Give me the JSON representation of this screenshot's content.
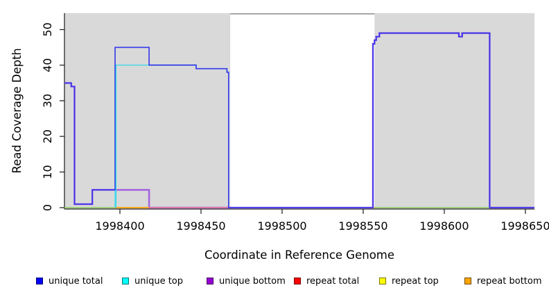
{
  "figure": {
    "background": "#ffffff",
    "shade_color": "#d9d9d9",
    "axis_color": "#1a1a1a",
    "gap_top_border_color": "#8a8a8a"
  },
  "chart_data": {
    "type": "line",
    "step": true,
    "title": "",
    "xlabel": "Coordinate in Reference Genome",
    "ylabel": "Read Coverage Depth",
    "xlim": [
      1998365.8,
      1998655.6
    ],
    "ylim": [
      0,
      54.6
    ],
    "x_ticks": [
      {
        "value": 1998400,
        "label": "1998400"
      },
      {
        "value": 1998450,
        "label": "1998450"
      },
      {
        "value": 1998500,
        "label": "1998500"
      },
      {
        "value": 1998550,
        "label": "1998550"
      },
      {
        "value": 1998600,
        "label": "1998600"
      },
      {
        "value": 1998650,
        "label": "1998650"
      }
    ],
    "y_ticks": [
      {
        "value": 0,
        "label": "0"
      },
      {
        "value": 10,
        "label": "10"
      },
      {
        "value": 20,
        "label": "20"
      },
      {
        "value": 30,
        "label": "30"
      },
      {
        "value": 40,
        "label": "40"
      },
      {
        "value": 50,
        "label": "50"
      }
    ],
    "grid": false,
    "legend_position": "bottom",
    "shaded_regions": [
      {
        "x0": 1998365.8,
        "x1": 1998468
      },
      {
        "x0": 1998557,
        "x1": 1998655.6
      }
    ],
    "series": [
      {
        "name": "repeat total",
        "legend_color": "#ff0000",
        "stroke": "#ee7896",
        "width": 1.4,
        "points": [
          [
            1998365.8,
            0
          ],
          [
            1998655.6,
            0
          ]
        ]
      },
      {
        "name": "repeat top",
        "legend_color": "#ffff00",
        "stroke": "#ffff00",
        "width": 1.2,
        "points": [
          [
            1998365.8,
            0
          ],
          [
            1998655.6,
            0
          ]
        ]
      },
      {
        "name": "repeat bottom",
        "legend_color": "#ffa500",
        "stroke": "#ffa500",
        "width": 1.2,
        "points": [
          [
            1998365.8,
            0
          ],
          [
            1998655.6,
            0
          ]
        ]
      },
      {
        "name": "unique bottom",
        "legend_color": "#9400d3",
        "stroke": "#a566e0",
        "width": 2.6,
        "points": [
          [
            1998365.8,
            35
          ],
          [
            1998370,
            35
          ],
          [
            1998370,
            34
          ],
          [
            1998372,
            34
          ],
          [
            1998372,
            1
          ],
          [
            1998383,
            1
          ],
          [
            1998383,
            5
          ],
          [
            1998418,
            5
          ],
          [
            1998418,
            0
          ],
          [
            1998556,
            0
          ],
          [
            1998556,
            46
          ],
          [
            1998557,
            46
          ],
          [
            1998557,
            47
          ],
          [
            1998558,
            47
          ],
          [
            1998558,
            48
          ],
          [
            1998560,
            48
          ],
          [
            1998560,
            49
          ],
          [
            1998609,
            49
          ],
          [
            1998609,
            48
          ],
          [
            1998611,
            48
          ],
          [
            1998611,
            49
          ],
          [
            1998628,
            49
          ],
          [
            1998628,
            0
          ],
          [
            1998655.6,
            0
          ]
        ]
      },
      {
        "name": "unique top",
        "legend_color": "#00ffff",
        "stroke": "#4cd8e4",
        "width": 1.5,
        "points": [
          [
            1998397,
            0
          ],
          [
            1998397,
            40
          ],
          [
            1998447,
            40
          ],
          [
            1998447,
            39
          ],
          [
            1998466,
            39
          ],
          [
            1998466,
            38
          ],
          [
            1998467,
            38
          ],
          [
            1998467,
            0
          ]
        ]
      },
      {
        "name": "unique total",
        "legend_color": "#0000ff",
        "stroke": "#3336ea",
        "width": 1.6,
        "points": [
          [
            1998365.8,
            35
          ],
          [
            1998370,
            35
          ],
          [
            1998370,
            34
          ],
          [
            1998372,
            34
          ],
          [
            1998372,
            1
          ],
          [
            1998383,
            1
          ],
          [
            1998383,
            5
          ],
          [
            1998397,
            5
          ],
          [
            1998397,
            45
          ],
          [
            1998418,
            45
          ],
          [
            1998418,
            40
          ],
          [
            1998447,
            40
          ],
          [
            1998447,
            39
          ],
          [
            1998466,
            39
          ],
          [
            1998466,
            38
          ],
          [
            1998467,
            38
          ],
          [
            1998467,
            0
          ],
          [
            1998556,
            0
          ],
          [
            1998556,
            46
          ],
          [
            1998557,
            46
          ],
          [
            1998557,
            47
          ],
          [
            1998558,
            47
          ],
          [
            1998558,
            48
          ],
          [
            1998560,
            48
          ],
          [
            1998560,
            49
          ],
          [
            1998609,
            49
          ],
          [
            1998609,
            48
          ],
          [
            1998611,
            48
          ],
          [
            1998611,
            49
          ],
          [
            1998628,
            49
          ],
          [
            1998628,
            0
          ],
          [
            1998655.6,
            0
          ]
        ]
      }
    ],
    "zero_overlays": [
      {
        "x0": 1998365.8,
        "x1": 1998397,
        "color": "#82d782"
      },
      {
        "x0": 1998397,
        "x1": 1998418,
        "color": "#ffa500"
      },
      {
        "x0": 1998418,
        "x1": 1998468,
        "color": "#ee7896"
      },
      {
        "x0": 1998557,
        "x1": 1998628,
        "color": "#82d782"
      }
    ],
    "overlay_lines": [
      {
        "type": "vline",
        "x": 1998397.6,
        "y0": 0,
        "y1": 40,
        "color": "#2fd8e6",
        "width": 1.3
      }
    ]
  },
  "legend": {
    "items": [
      {
        "label": "unique total",
        "color": "#0000ff"
      },
      {
        "label": "unique top",
        "color": "#00ffff"
      },
      {
        "label": "unique bottom",
        "color": "#9400d3"
      },
      {
        "label": "repeat total",
        "color": "#ff0000"
      },
      {
        "label": "repeat top",
        "color": "#ffff00"
      },
      {
        "label": "repeat bottom",
        "color": "#ffa500"
      }
    ]
  }
}
